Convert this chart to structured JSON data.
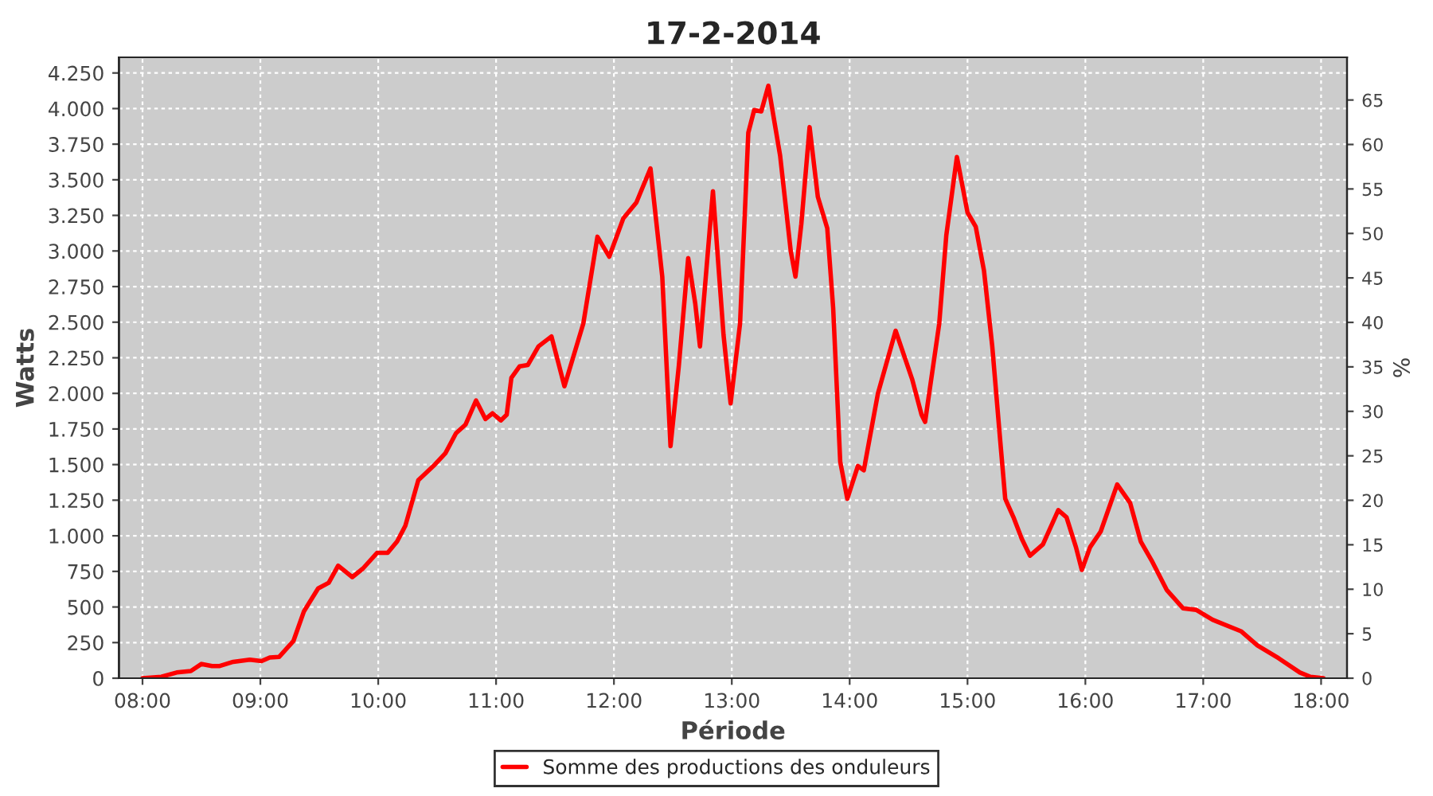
{
  "chart_data": {
    "type": "line",
    "title": "17-2-2014",
    "xlabel": "Période",
    "ylabel": "Watts",
    "y2label": "%",
    "xlim": [
      7.8,
      18.22
    ],
    "ylim": [
      0,
      4360
    ],
    "y2lim": [
      0,
      69.8
    ],
    "xticks": [
      {
        "value": 8,
        "label": "08:00"
      },
      {
        "value": 9,
        "label": "09:00"
      },
      {
        "value": 10,
        "label": "10:00"
      },
      {
        "value": 11,
        "label": "11:00"
      },
      {
        "value": 12,
        "label": "12:00"
      },
      {
        "value": 13,
        "label": "13:00"
      },
      {
        "value": 14,
        "label": "14:00"
      },
      {
        "value": 15,
        "label": "15:00"
      },
      {
        "value": 16,
        "label": "16:00"
      },
      {
        "value": 17,
        "label": "17:00"
      },
      {
        "value": 18,
        "label": "18:00"
      }
    ],
    "yticks": [
      0,
      250,
      500,
      750,
      {
        "value": 1000,
        "label": "1.000"
      },
      {
        "value": 1250,
        "label": "1.250"
      },
      {
        "value": 1500,
        "label": "1.500"
      },
      {
        "value": 1750,
        "label": "1.750"
      },
      {
        "value": 2000,
        "label": "2.000"
      },
      {
        "value": 2250,
        "label": "2.250"
      },
      {
        "value": 2500,
        "label": "2.500"
      },
      {
        "value": 2750,
        "label": "2.750"
      },
      {
        "value": 3000,
        "label": "3.000"
      },
      {
        "value": 3250,
        "label": "3.250"
      },
      {
        "value": 3500,
        "label": "3.500"
      },
      {
        "value": 3750,
        "label": "3.750"
      },
      {
        "value": 4000,
        "label": "4.000"
      },
      {
        "value": 4250,
        "label": "4.250"
      }
    ],
    "y2ticks": [
      0,
      5,
      10,
      15,
      20,
      25,
      30,
      35,
      40,
      45,
      50,
      55,
      60,
      65
    ],
    "grid": true,
    "legend": "bottom",
    "series": [
      {
        "name": "Somme des productions des onduleurs",
        "color": "#ff0000",
        "x": [
          8.0,
          8.16,
          8.29,
          8.41,
          8.5,
          8.59,
          8.65,
          8.77,
          8.91,
          9.01,
          9.08,
          9.16,
          9.28,
          9.37,
          9.49,
          9.58,
          9.66,
          9.78,
          9.87,
          9.99,
          10.08,
          10.16,
          10.23,
          10.34,
          10.48,
          10.57,
          10.66,
          10.74,
          10.83,
          10.91,
          10.97,
          11.04,
          11.09,
          11.13,
          11.2,
          11.27,
          11.36,
          11.47,
          11.58,
          11.74,
          11.86,
          11.96,
          12.08,
          12.19,
          12.31,
          12.41,
          12.48,
          12.55,
          12.63,
          12.69,
          12.73,
          12.84,
          12.93,
          12.99,
          13.07,
          13.14,
          13.19,
          13.25,
          13.31,
          13.41,
          13.5,
          13.54,
          13.59,
          13.66,
          13.73,
          13.81,
          13.86,
          13.92,
          13.98,
          14.07,
          14.12,
          14.24,
          14.39,
          14.53,
          14.61,
          14.64,
          14.76,
          14.82,
          14.91,
          15.0,
          15.07,
          15.14,
          15.21,
          15.27,
          15.32,
          15.39,
          15.46,
          15.53,
          15.64,
          15.77,
          15.84,
          15.92,
          15.97,
          16.04,
          16.13,
          16.27,
          16.38,
          16.47,
          16.56,
          16.69,
          16.83,
          16.94,
          17.08,
          17.32,
          17.46,
          17.64,
          17.82,
          17.91,
          18.02
        ],
        "values": [
          0,
          10,
          40,
          50,
          100,
          85,
          85,
          115,
          130,
          120,
          145,
          150,
          260,
          470,
          630,
          670,
          790,
          710,
          770,
          880,
          880,
          960,
          1070,
          1390,
          1500,
          1580,
          1720,
          1780,
          1950,
          1820,
          1860,
          1810,
          1850,
          2110,
          2190,
          2200,
          2330,
          2400,
          2050,
          2490,
          3100,
          2960,
          3230,
          3340,
          3580,
          2820,
          1630,
          2190,
          2950,
          2630,
          2330,
          3420,
          2410,
          1930,
          2490,
          3830,
          3990,
          3980,
          4160,
          3670,
          3000,
          2820,
          3190,
          3870,
          3380,
          3160,
          2600,
          1520,
          1260,
          1490,
          1460,
          2000,
          2440,
          2100,
          1850,
          1800,
          2490,
          3110,
          3660,
          3270,
          3170,
          2860,
          2330,
          1740,
          1260,
          1130,
          980,
          860,
          940,
          1180,
          1130,
          920,
          760,
          920,
          1030,
          1360,
          1230,
          960,
          830,
          620,
          490,
          480,
          410,
          330,
          230,
          140,
          40,
          10,
          0
        ]
      }
    ]
  }
}
